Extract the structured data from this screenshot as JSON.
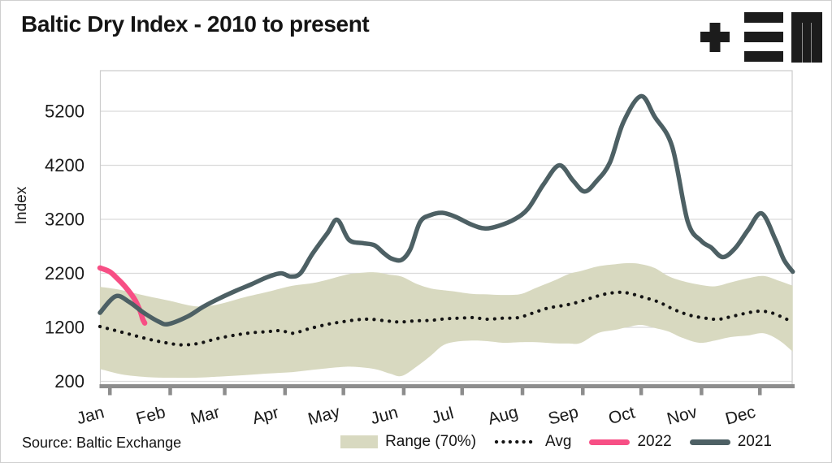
{
  "header": {
    "title": "Baltic Dry Index - 2010 to present",
    "logo_icon": "tem-logo"
  },
  "source": "Source: Baltic Exchange",
  "colors": {
    "band": "#d8d9c0",
    "avg": "#141414",
    "y2022": "#f74f85",
    "y2021": "#4d6064",
    "grid": "#dadada",
    "plot_border": "#cccccc",
    "axis": "#8d8d8d",
    "text": "#1a1a1a",
    "logo": "#1c1c1c"
  },
  "chart_data": {
    "type": "line",
    "title": "Baltic Dry Index - 2010 to present",
    "xlabel": "",
    "ylabel": "Index",
    "ylim": [
      200,
      5950
    ],
    "y_ticks": [
      200,
      1200,
      2200,
      3200,
      4200,
      5200
    ],
    "grid": "horizontal",
    "x_unit": "day-of-year",
    "x_ticks": [
      [
        "Jan",
        0
      ],
      [
        "Feb",
        31
      ],
      [
        "Mar",
        59
      ],
      [
        "Apr",
        90
      ],
      [
        "May",
        120
      ],
      [
        "Jun",
        151
      ],
      [
        "Jul",
        181
      ],
      [
        "Aug",
        212
      ],
      [
        "Sep",
        243
      ],
      [
        "Oct",
        273
      ],
      [
        "Nov",
        304
      ],
      [
        "Dec",
        334
      ]
    ],
    "legend_position": "bottom-right",
    "legend": [
      {
        "label": "Range (70%)",
        "swatch": "band",
        "color": "#d8d9c0"
      },
      {
        "label": "Avg",
        "swatch": "dotted",
        "color": "#141414"
      },
      {
        "label": "2022",
        "swatch": "line",
        "color": "#f74f85"
      },
      {
        "label": "2021",
        "swatch": "line",
        "color": "#4d6064"
      }
    ],
    "band": {
      "name": "Range (70%)",
      "points": [
        [
          -5,
          430,
          1950
        ],
        [
          6,
          330,
          1890
        ],
        [
          19,
          280,
          1780
        ],
        [
          31,
          268,
          1690
        ],
        [
          44,
          268,
          1590
        ],
        [
          55,
          285,
          1620
        ],
        [
          69,
          315,
          1755
        ],
        [
          81,
          345,
          1855
        ],
        [
          94,
          372,
          1970
        ],
        [
          106,
          420,
          2030
        ],
        [
          119,
          465,
          2150
        ],
        [
          125,
          470,
          2195
        ],
        [
          136,
          430,
          2220
        ],
        [
          144,
          345,
          2175
        ],
        [
          150,
          300,
          2140
        ],
        [
          158,
          480,
          2000
        ],
        [
          165,
          675,
          1920
        ],
        [
          171,
          860,
          1890
        ],
        [
          177,
          930,
          1865
        ],
        [
          186,
          955,
          1820
        ],
        [
          194,
          945,
          1810
        ],
        [
          202,
          915,
          1800
        ],
        [
          211,
          925,
          1815
        ],
        [
          219,
          925,
          1930
        ],
        [
          228,
          905,
          2060
        ],
        [
          236,
          900,
          2190
        ],
        [
          242,
          910,
          2240
        ],
        [
          251,
          1095,
          2330
        ],
        [
          260,
          1155,
          2370
        ],
        [
          267,
          1210,
          2390
        ],
        [
          273,
          1245,
          2370
        ],
        [
          280,
          1190,
          2300
        ],
        [
          287,
          1125,
          2150
        ],
        [
          294,
          1010,
          2060
        ],
        [
          303,
          915,
          1990
        ],
        [
          311,
          955,
          1960
        ],
        [
          319,
          1020,
          2030
        ],
        [
          328,
          1050,
          2110
        ],
        [
          336,
          1090,
          2150
        ],
        [
          344,
          960,
          2060
        ],
        [
          351,
          750,
          1970
        ]
      ]
    },
    "series": [
      {
        "name": "Avg",
        "style": "dotted",
        "color": "#141414",
        "points": [
          [
            -5,
            1215
          ],
          [
            2,
            1150
          ],
          [
            10,
            1075
          ],
          [
            19,
            990
          ],
          [
            28,
            920
          ],
          [
            37,
            875
          ],
          [
            46,
            905
          ],
          [
            55,
            990
          ],
          [
            65,
            1060
          ],
          [
            73,
            1100
          ],
          [
            81,
            1120
          ],
          [
            88,
            1140
          ],
          [
            94,
            1090
          ],
          [
            102,
            1170
          ],
          [
            111,
            1250
          ],
          [
            119,
            1300
          ],
          [
            127,
            1340
          ],
          [
            134,
            1350
          ],
          [
            142,
            1320
          ],
          [
            149,
            1300
          ],
          [
            157,
            1320
          ],
          [
            165,
            1330
          ],
          [
            173,
            1360
          ],
          [
            180,
            1370
          ],
          [
            187,
            1380
          ],
          [
            194,
            1350
          ],
          [
            202,
            1370
          ],
          [
            210,
            1380
          ],
          [
            217,
            1460
          ],
          [
            225,
            1555
          ],
          [
            234,
            1610
          ],
          [
            241,
            1670
          ],
          [
            248,
            1750
          ],
          [
            255,
            1820
          ],
          [
            262,
            1850
          ],
          [
            267,
            1830
          ],
          [
            273,
            1770
          ],
          [
            282,
            1670
          ],
          [
            290,
            1530
          ],
          [
            298,
            1425
          ],
          [
            307,
            1365
          ],
          [
            313,
            1350
          ],
          [
            319,
            1395
          ],
          [
            328,
            1470
          ],
          [
            334,
            1500
          ],
          [
            340,
            1470
          ],
          [
            347,
            1365
          ],
          [
            351,
            1290
          ]
        ]
      },
      {
        "name": "2022",
        "style": "solid",
        "color": "#f74f85",
        "points": [
          [
            -5,
            2300
          ],
          [
            0,
            2230
          ],
          [
            4,
            2100
          ],
          [
            8,
            1950
          ],
          [
            12.5,
            1740
          ],
          [
            14.6,
            1590
          ],
          [
            16,
            1470
          ],
          [
            17,
            1350
          ],
          [
            18,
            1280
          ]
        ]
      },
      {
        "name": "2021",
        "style": "solid",
        "color": "#4d6064",
        "points": [
          [
            -5,
            1470
          ],
          [
            3,
            1775
          ],
          [
            10,
            1670
          ],
          [
            17.5,
            1470
          ],
          [
            25,
            1310
          ],
          [
            30,
            1260
          ],
          [
            40,
            1400
          ],
          [
            48,
            1580
          ],
          [
            56,
            1730
          ],
          [
            65,
            1880
          ],
          [
            73,
            2000
          ],
          [
            81,
            2130
          ],
          [
            88,
            2200
          ],
          [
            93,
            2140
          ],
          [
            98,
            2200
          ],
          [
            104,
            2550
          ],
          [
            112,
            2950
          ],
          [
            117,
            3190
          ],
          [
            123,
            2820
          ],
          [
            130,
            2760
          ],
          [
            136,
            2720
          ],
          [
            141,
            2570
          ],
          [
            145,
            2470
          ],
          [
            150,
            2450
          ],
          [
            154.5,
            2650
          ],
          [
            159.5,
            3150
          ],
          [
            165,
            3280
          ],
          [
            171,
            3320
          ],
          [
            177.5,
            3250
          ],
          [
            186,
            3100
          ],
          [
            193,
            3030
          ],
          [
            200,
            3080
          ],
          [
            208,
            3200
          ],
          [
            215,
            3400
          ],
          [
            223,
            3850
          ],
          [
            231,
            4200
          ],
          [
            238,
            3920
          ],
          [
            244,
            3715
          ],
          [
            250,
            3900
          ],
          [
            257,
            4250
          ],
          [
            264,
            5000
          ],
          [
            273,
            5480
          ],
          [
            280,
            5100
          ],
          [
            289,
            4550
          ],
          [
            297,
            3160
          ],
          [
            304,
            2800
          ],
          [
            309,
            2680
          ],
          [
            315,
            2500
          ],
          [
            321.5,
            2670
          ],
          [
            328,
            3000
          ],
          [
            335,
            3310
          ],
          [
            342,
            2830
          ],
          [
            346.5,
            2450
          ],
          [
            351,
            2230
          ]
        ]
      }
    ]
  }
}
